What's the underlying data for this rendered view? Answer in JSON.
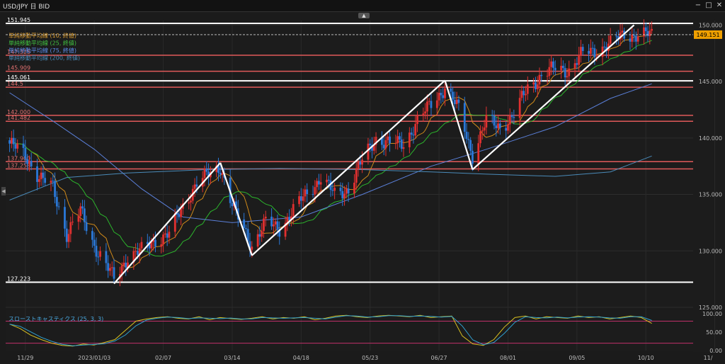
{
  "window": {
    "title": "USD/JPY 日 BID"
  },
  "toolbar": {
    "collapse_icon": "chevron-up-icon",
    "side_handle_icon": "chevron-left-icon"
  },
  "colors": {
    "up": "#e03030",
    "down": "#2a78d8",
    "sma10": "#d08a1a",
    "sma25": "#2cb52c",
    "sma75": "#5a7fd8",
    "sma200": "#4a8ab8",
    "hline": "#e05a5a",
    "price_tag": "#f0a000"
  },
  "legend": [
    {
      "label": "単純移動平均線 (10, 終値)",
      "color": "#e0a030"
    },
    {
      "label": "単純移動平均線 (25, 終値)",
      "color": "#40c040"
    },
    {
      "label": "単純移動平均線 (75, 終値)",
      "color": "#5a8ae8"
    },
    {
      "label": "単純移動平均線 (200, 終値)",
      "color": "#4a8ab8"
    }
  ],
  "chart_data": {
    "type": "candlestick",
    "x_ticks": [
      "11/29",
      "2023/01/03",
      "02/07",
      "03/14",
      "04/18",
      "05/23",
      "06/27",
      "08/01",
      "09/05",
      "10/10",
      "11/"
    ],
    "y_ticks": [
      "150.000",
      "145.000",
      "140.000",
      "135.000",
      "130.000",
      "125.000"
    ],
    "ylim": [
      125,
      150.4
    ],
    "last_price": "149.151",
    "price_levels": [
      {
        "label": "151.945",
        "value": 151.945,
        "style": "white"
      },
      {
        "label": "147.325",
        "value": 147.325,
        "style": "red"
      },
      {
        "label": "145.909",
        "value": 145.909,
        "style": "red"
      },
      {
        "label": "145.061",
        "value": 145.061,
        "style": "white"
      },
      {
        "label": "144.5",
        "value": 144.5,
        "style": "red"
      },
      {
        "label": "142.000",
        "value": 142.0,
        "style": "red"
      },
      {
        "label": "141.482",
        "value": 141.482,
        "style": "red"
      },
      {
        "label": "137.900",
        "value": 137.9,
        "style": "red"
      },
      {
        "label": "137.258",
        "value": 137.258,
        "style": "red"
      },
      {
        "label": "127.223",
        "value": 127.223,
        "style": "white"
      }
    ],
    "trendlines": [
      {
        "from": {
          "date": "2023/01/13",
          "value": 127.1
        },
        "to": {
          "date": "2023/03/08",
          "value": 137.8
        }
      },
      {
        "from": {
          "date": "2023/03/08",
          "value": 137.8
        },
        "to": {
          "date": "2023/03/24",
          "value": 129.6
        }
      },
      {
        "from": {
          "date": "2023/03/24",
          "value": 129.6
        },
        "to": {
          "date": "2023/06/30",
          "value": 145.1
        }
      },
      {
        "from": {
          "date": "2023/06/30",
          "value": 145.1
        },
        "to": {
          "date": "2023/07/14",
          "value": 137.2
        }
      },
      {
        "from": {
          "date": "2023/07/14",
          "value": 137.2
        },
        "to": {
          "date": "2023/10/04",
          "value": 150.0
        }
      }
    ],
    "close_path": [
      [
        "2022/11/21",
        139.5
      ],
      [
        "2022/11/29",
        138.5
      ],
      [
        "2022/12/06",
        136.5
      ],
      [
        "2022/12/13",
        135.6
      ],
      [
        "2022/12/20",
        131.5
      ],
      [
        "2022/12/27",
        133.5
      ],
      [
        "2023/01/03",
        130.5
      ],
      [
        "2023/01/13",
        127.5
      ],
      [
        "2023/01/20",
        129.5
      ],
      [
        "2023/01/27",
        130.0
      ],
      [
        "2023/02/03",
        131.0
      ],
      [
        "2023/02/10",
        131.5
      ],
      [
        "2023/02/17",
        134.0
      ],
      [
        "2023/02/24",
        136.0
      ],
      [
        "2023/03/08",
        137.5
      ],
      [
        "2023/03/14",
        134.0
      ],
      [
        "2023/03/24",
        130.5
      ],
      [
        "2023/03/31",
        132.5
      ],
      [
        "2023/04/07",
        132.0
      ],
      [
        "2023/04/18",
        134.5
      ],
      [
        "2023/04/28",
        136.5
      ],
      [
        "2023/05/05",
        135.0
      ],
      [
        "2023/05/12",
        135.5
      ],
      [
        "2023/05/19",
        138.0
      ],
      [
        "2023/05/26",
        140.0
      ],
      [
        "2023/06/02",
        139.5
      ],
      [
        "2023/06/09",
        139.5
      ],
      [
        "2023/06/16",
        141.5
      ],
      [
        "2023/06/23",
        143.0
      ],
      [
        "2023/06/30",
        144.5
      ],
      [
        "2023/07/07",
        142.5
      ],
      [
        "2023/07/14",
        138.5
      ],
      [
        "2023/07/21",
        141.5
      ],
      [
        "2023/07/28",
        141.0
      ],
      [
        "2023/08/04",
        142.0
      ],
      [
        "2023/08/11",
        144.5
      ],
      [
        "2023/08/18",
        145.5
      ],
      [
        "2023/08/25",
        146.2
      ],
      [
        "2023/09/01",
        146.0
      ],
      [
        "2023/09/08",
        147.5
      ],
      [
        "2023/09/15",
        147.8
      ],
      [
        "2023/09/22",
        148.3
      ],
      [
        "2023/09/29",
        149.3
      ],
      [
        "2023/10/06",
        149.0
      ],
      [
        "2023/10/13",
        149.2
      ]
    ],
    "sma200_path": [
      [
        "2022/11/21",
        134.5
      ],
      [
        "2022/12/20",
        136.5
      ],
      [
        "2023/01/20",
        136.9
      ],
      [
        "2023/03/01",
        137.2
      ],
      [
        "2023/04/07",
        137.3
      ],
      [
        "2023/05/19",
        137.2
      ],
      [
        "2023/06/23",
        137.0
      ],
      [
        "2023/07/21",
        136.8
      ],
      [
        "2023/08/25",
        136.6
      ],
      [
        "2023/09/22",
        137.0
      ],
      [
        "2023/10/13",
        138.4
      ]
    ],
    "sma75_path": [
      [
        "2022/11/21",
        144.0
      ],
      [
        "2022/12/13",
        141.5
      ],
      [
        "2023/01/03",
        139.0
      ],
      [
        "2023/01/27",
        135.5
      ],
      [
        "2023/02/17",
        133.0
      ],
      [
        "2023/03/14",
        132.5
      ],
      [
        "2023/04/18",
        133.0
      ],
      [
        "2023/05/19",
        135.0
      ],
      [
        "2023/06/23",
        137.5
      ],
      [
        "2023/07/21",
        139.0
      ],
      [
        "2023/08/25",
        141.0
      ],
      [
        "2023/09/22",
        143.5
      ],
      [
        "2023/10/13",
        144.8
      ]
    ],
    "oscillator": {
      "label": "スローストキャスティクス (25, 3, 3)",
      "ylim": [
        0,
        110
      ],
      "y_ticks": [
        "100.00",
        "50.00",
        "0.00"
      ],
      "levels": [
        80,
        20
      ],
      "values": [
        72,
        60,
        42,
        30,
        20,
        14,
        12,
        18,
        15,
        22,
        30,
        55,
        80,
        86,
        90,
        92,
        88,
        86,
        92,
        84,
        90,
        87,
        85,
        88,
        92,
        86,
        90,
        88,
        92,
        84,
        88,
        94,
        96,
        92,
        90,
        94,
        96,
        94,
        92,
        96,
        90,
        92,
        94,
        40,
        18,
        14,
        30,
        64,
        90,
        94,
        86,
        92,
        90,
        88,
        94,
        90,
        92,
        86,
        90,
        94,
        90,
        74
      ]
    }
  }
}
